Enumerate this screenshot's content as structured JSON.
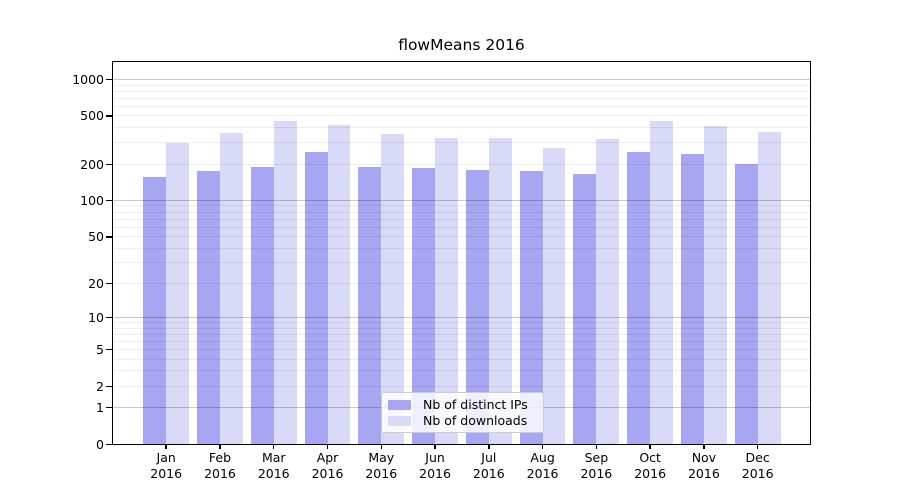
{
  "title": "flowMeans 2016",
  "chart_data": {
    "type": "bar",
    "title": "flowMeans 2016",
    "categories": [
      "Jan 2016",
      "Feb 2016",
      "Mar 2016",
      "Apr 2016",
      "May 2016",
      "Jun 2016",
      "Jul 2016",
      "Aug 2016",
      "Sep 2016",
      "Oct 2016",
      "Nov 2016",
      "Dec 2016"
    ],
    "series": [
      {
        "name": "Nb of distinct IPs",
        "color": "#a6a6f2",
        "values": [
          158,
          176,
          188,
          251,
          188,
          185,
          179,
          176,
          166,
          251,
          245,
          201
        ]
      },
      {
        "name": "Nb of downloads",
        "color": "#d9d9f8",
        "values": [
          301,
          360,
          457,
          424,
          355,
          331,
          327,
          270,
          323,
          454,
          416,
          367
        ]
      }
    ],
    "xlabel": "",
    "ylabel": "",
    "yscale": "log1p",
    "yticks": [
      0,
      1,
      2,
      5,
      10,
      20,
      50,
      100,
      200,
      500,
      1000
    ],
    "ylim": [
      0,
      1400
    ],
    "grid": "horizontal",
    "legend_position": "lower-center"
  }
}
